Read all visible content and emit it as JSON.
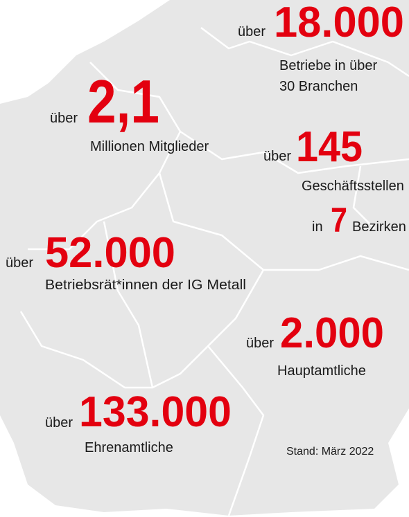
{
  "stats": [
    {
      "prefix": "über",
      "number": "18.000",
      "description": [
        "Betriebe in über",
        "30 Branchen"
      ]
    },
    {
      "prefix": "über",
      "number": "2,1",
      "description": [
        "Millionen Mitglieder"
      ]
    },
    {
      "prefix": "über",
      "number": "145",
      "description": [
        "Geschäftsstellen"
      ]
    },
    {
      "prefix": "in",
      "number": "7",
      "suffix": "Bezirken"
    },
    {
      "prefix": "über",
      "number": "52.000",
      "description": [
        "Betriebsrät*innen der IG Metall"
      ]
    },
    {
      "prefix": "über",
      "number": "2.000",
      "description": [
        "Hauptamtliche"
      ]
    },
    {
      "prefix": "über",
      "number": "133.000",
      "description": [
        "Ehrenamtliche"
      ]
    }
  ],
  "footnote": "Stand: März 2022"
}
